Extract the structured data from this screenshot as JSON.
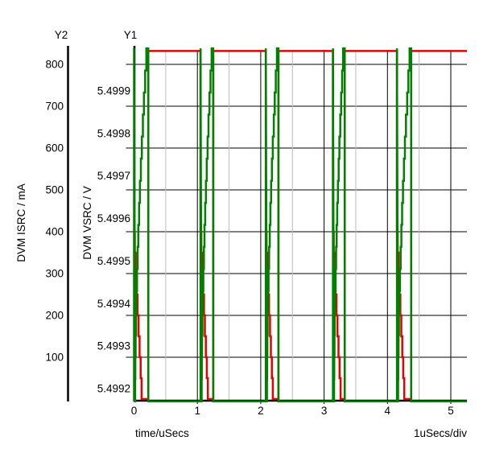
{
  "chart_data": {
    "type": "line",
    "title": "",
    "grid": true,
    "background": "#ffffff",
    "x_axis": {
      "label": "time/uSecs",
      "div_label": "1uSecs/div",
      "ticks": [
        0,
        1,
        2,
        3,
        4,
        5
      ],
      "tick_labels": [
        "0",
        "1",
        "2",
        "3",
        "4",
        "5"
      ],
      "minor_ticks": [
        0.5,
        1.5,
        2.5,
        3.5,
        4.5
      ],
      "range": [
        0,
        5.25
      ],
      "units": "uSecs"
    },
    "y1_axis": {
      "header": "Y1",
      "label": "DVM VSRC / V",
      "ticks": [
        5.4999,
        5.4998,
        5.4997,
        5.4996,
        5.4995,
        5.4994,
        5.4993,
        5.4992
      ],
      "tick_labels": [
        "5.4999",
        "5.4998",
        "5.4997",
        "5.4996",
        "5.4995",
        "5.4994",
        "5.4993",
        "5.4992"
      ],
      "range": [
        5.49917,
        5.50001
      ],
      "units": "V"
    },
    "y2_axis": {
      "header": "Y2",
      "label": "DVM ISRC / mA",
      "ticks": [
        800,
        700,
        600,
        500,
        400,
        300,
        200,
        100
      ],
      "tick_labels": [
        "800",
        "700",
        "600",
        "500",
        "400",
        "300",
        "200",
        "100"
      ],
      "range": [
        0,
        844
      ],
      "units": "mA"
    },
    "series": [
      {
        "name": "DVM ISRC",
        "axis": "y2",
        "color": "#e60000",
        "shape": "pulse-with-staircase-decay",
        "high_mA": 832,
        "decay_start_mA": 400,
        "low_mA": 0
      },
      {
        "name": "DVM VSRC",
        "axis": "y1",
        "color": "#008000",
        "shape": "spike-ramp-square",
        "high_V": 5.5,
        "low_V": 5.49917
      }
    ],
    "cycles": [
      {
        "spike": 0.0,
        "red_zero": 0.12,
        "ramp_top": 0.195,
        "drop": 0.225
      },
      {
        "spike": 1.05,
        "red_zero": 1.165,
        "ramp_top": 1.225,
        "drop": 1.25
      },
      {
        "spike": 2.08,
        "red_zero": 2.19,
        "ramp_top": 2.255,
        "drop": 2.28
      },
      {
        "spike": 3.14,
        "red_zero": 3.26,
        "ramp_top": 3.3,
        "drop": 3.325
      },
      {
        "spike": 4.15,
        "red_zero": 4.265,
        "ramp_top": 4.35,
        "drop": 4.375
      }
    ]
  }
}
